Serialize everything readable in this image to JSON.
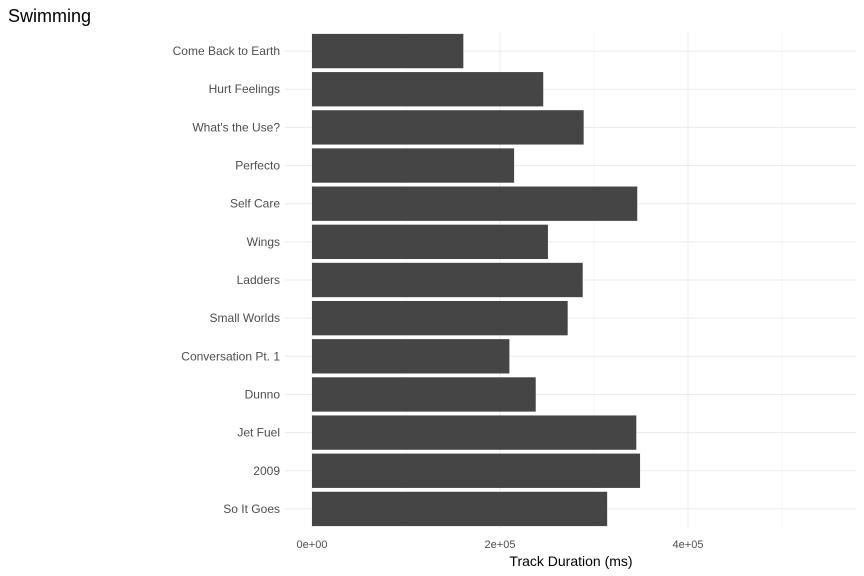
{
  "chart_data": {
    "type": "bar",
    "orientation": "horizontal",
    "title": "Swimming",
    "xlabel": "Track Duration (ms)",
    "ylabel": "",
    "xlim": [
      0,
      580000
    ],
    "x_ticks": [
      {
        "value": 0,
        "label": "0e+00"
      },
      {
        "value": 200000,
        "label": "2e+05"
      },
      {
        "value": 400000,
        "label": "4e+05"
      }
    ],
    "categories": [
      "Come Back to Earth",
      "Hurt Feelings",
      "What's the Use?",
      "Perfecto",
      "Self Care",
      "Wings",
      "Ladders",
      "Small Worlds",
      "Conversation Pt. 1",
      "Dunno",
      "Jet Fuel",
      "2009",
      "So It Goes"
    ],
    "values": [
      161000,
      246000,
      289000,
      215000,
      346000,
      251000,
      288000,
      272000,
      210000,
      238000,
      345000,
      349000,
      314000
    ],
    "bar_color": "#454545",
    "grid": true,
    "legend": "none"
  }
}
